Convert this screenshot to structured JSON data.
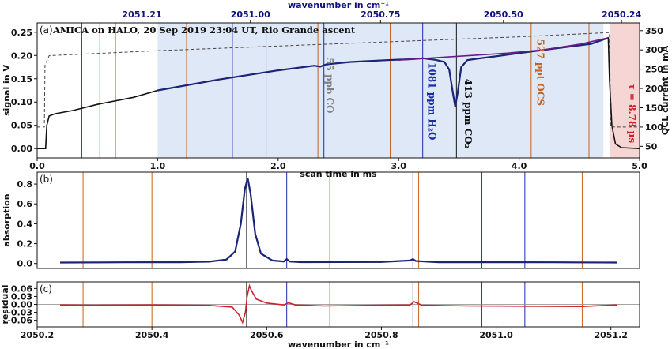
{
  "chart_data": [
    {
      "id": "a",
      "type": "line",
      "panel_label": "(a)",
      "title": "AMICA on HALO, 20 Sep 2019 23:04 UT, Rio Grande ascent",
      "xlabel": "scan time in ms",
      "ylabel": "signal in V",
      "y2label": "QCL current in mA",
      "top_axis_label": "wavenumber in cm⁻¹",
      "xlim": [
        0,
        5
      ],
      "ylim": [
        -0.02,
        0.27
      ],
      "y2lim": [
        20,
        370
      ],
      "xticks": [
        0.0,
        1.0,
        2.0,
        3.0,
        4.0,
        5.0
      ],
      "yticks": [
        0.0,
        0.05,
        0.1,
        0.15,
        0.2,
        0.25
      ],
      "y2ticks": [
        50,
        100,
        150,
        200,
        250,
        300,
        350
      ],
      "top_ticks": [
        {
          "label": "2051.21",
          "x": 0.87
        },
        {
          "label": "2051.00",
          "x": 1.77
        },
        {
          "label": "2050.75",
          "x": 2.85
        },
        {
          "label": "2050.50",
          "x": 3.87
        },
        {
          "label": "2050.24",
          "x": 4.85
        }
      ],
      "regions": [
        {
          "x0": 1.0,
          "x1": 4.7,
          "color": "#dfe8f6"
        },
        {
          "x0": 4.75,
          "x1": 5.0,
          "color": "#f6d5d5"
        }
      ],
      "lines": [
        {
          "x": 0.37,
          "color": "#1a2bb0"
        },
        {
          "x": 0.52,
          "color": "#c8621a"
        },
        {
          "x": 0.65,
          "color": "#c8621a"
        },
        {
          "x": 1.24,
          "color": "#c8621a"
        },
        {
          "x": 1.62,
          "color": "#1a2bb0"
        },
        {
          "x": 1.9,
          "color": "#1a2bb0"
        },
        {
          "x": 2.33,
          "color": "#c8621a"
        },
        {
          "x": 2.38,
          "color": "#1a2bb0"
        },
        {
          "x": 2.93,
          "color": "#c8621a"
        },
        {
          "x": 3.2,
          "color": "#1a2bb0"
        },
        {
          "x": 3.48,
          "color": "#1a1a1a"
        },
        {
          "x": 4.1,
          "color": "#c8621a"
        },
        {
          "x": 4.58,
          "color": "#c8621a"
        }
      ],
      "series": [
        {
          "role": "signal",
          "color": "#111111",
          "x": [
            0.0,
            0.07,
            0.08,
            0.1,
            0.15,
            0.3,
            0.5,
            0.8,
            1.0,
            1.5,
            2.0,
            2.3,
            2.35,
            2.4,
            2.6,
            2.9,
            3.1,
            3.2,
            3.3,
            3.38,
            3.42,
            3.45,
            3.47,
            3.49,
            3.52,
            3.57,
            3.65,
            3.8,
            4.0,
            4.3,
            4.6,
            4.74,
            4.75,
            4.77,
            4.8,
            4.85,
            5.0
          ],
          "y": [
            0.0,
            0.0,
            0.05,
            0.07,
            0.075,
            0.082,
            0.095,
            0.11,
            0.125,
            0.148,
            0.168,
            0.178,
            0.176,
            0.181,
            0.186,
            0.19,
            0.192,
            0.194,
            0.191,
            0.186,
            0.17,
            0.12,
            0.09,
            0.12,
            0.175,
            0.19,
            0.193,
            0.198,
            0.205,
            0.215,
            0.225,
            0.238,
            0.15,
            0.05,
            0.01,
            0.002,
            0.0
          ]
        },
        {
          "role": "fit",
          "color": "#1c2478",
          "x": [
            1.0,
            1.5,
            2.0,
            2.3,
            2.35,
            2.4,
            2.6,
            2.9,
            3.1,
            3.2,
            3.3,
            3.38,
            3.42,
            3.45,
            3.47,
            3.49,
            3.52,
            3.57,
            3.65,
            3.8,
            4.0,
            4.3,
            4.6,
            4.74
          ],
          "y": [
            0.125,
            0.148,
            0.168,
            0.178,
            0.176,
            0.181,
            0.186,
            0.19,
            0.192,
            0.194,
            0.191,
            0.186,
            0.17,
            0.12,
            0.09,
            0.12,
            0.175,
            0.19,
            0.193,
            0.198,
            0.205,
            0.215,
            0.225,
            0.238
          ]
        },
        {
          "role": "baseline",
          "color": "#6a1b8a",
          "x": [
            3.0,
            3.3,
            3.6,
            3.9,
            4.2,
            4.5,
            4.74
          ],
          "y": [
            0.19,
            0.195,
            0.2,
            0.205,
            0.212,
            0.224,
            0.238
          ]
        },
        {
          "role": "qcl_current",
          "axis": "y2",
          "color": "#444444",
          "dash": true,
          "x": [
            0.0,
            0.06,
            0.065,
            0.1,
            1.0,
            2.0,
            3.0,
            4.0,
            4.75,
            4.76,
            5.0
          ],
          "y": [
            100,
            100,
            260,
            285,
            298,
            310,
            322,
            334,
            345,
            100,
            100
          ]
        }
      ],
      "annotations": [
        {
          "text": "55 ppb CO",
          "x": 2.4,
          "y": 0.195,
          "color": "#808080"
        },
        {
          "text": "1081 ppm H₂O",
          "x": 3.25,
          "y": 0.185,
          "color": "#1a2bb0"
        },
        {
          "text": "413 ppm CO₂",
          "x": 3.55,
          "y": 0.15,
          "color": "#111111"
        },
        {
          "text": "527 ppt OCS",
          "x": 4.15,
          "y": 0.235,
          "color": "#c8621a"
        },
        {
          "text": "τ = 8.78 µs",
          "x": 4.91,
          "y": 0.14,
          "color": "#d0202a"
        }
      ]
    },
    {
      "id": "b",
      "type": "line",
      "panel_label": "(b)",
      "ylabel": "absorption",
      "xlim": [
        2050.2,
        2051.25
      ],
      "ylim": [
        -0.05,
        0.92
      ],
      "yticks": [
        0.0,
        0.2,
        0.4,
        0.6,
        0.8
      ],
      "lines": [
        {
          "x": 2050.28,
          "color": "#c8621a"
        },
        {
          "x": 2050.4,
          "color": "#c8621a"
        },
        {
          "x": 2050.565,
          "color": "#1a1a1a"
        },
        {
          "x": 2050.635,
          "color": "#1a2bb0"
        },
        {
          "x": 2050.71,
          "color": "#c8621a"
        },
        {
          "x": 2050.855,
          "color": "#1a2bb0"
        },
        {
          "x": 2050.865,
          "color": "#c8621a"
        },
        {
          "x": 2050.975,
          "color": "#1a2bb0"
        },
        {
          "x": 2051.05,
          "color": "#1a2bb0"
        },
        {
          "x": 2051.15,
          "color": "#c8621a"
        }
      ],
      "series": [
        {
          "role": "measured",
          "color": "#111111",
          "x": [
            2050.24,
            2050.35,
            2050.45,
            2050.5,
            2050.53,
            2050.545,
            2050.555,
            2050.562,
            2050.567,
            2050.572,
            2050.58,
            2050.59,
            2050.61,
            2050.63,
            2050.635,
            2050.64,
            2050.66,
            2050.8,
            2050.85,
            2050.855,
            2050.86,
            2050.9,
            2051.0,
            2051.1,
            2051.21
          ],
          "y": [
            0.01,
            0.012,
            0.013,
            0.018,
            0.04,
            0.12,
            0.4,
            0.75,
            0.86,
            0.7,
            0.3,
            0.1,
            0.03,
            0.02,
            0.045,
            0.02,
            0.014,
            0.015,
            0.03,
            0.045,
            0.025,
            0.013,
            0.013,
            0.012,
            0.01
          ]
        },
        {
          "role": "fit",
          "color": "#1c2478",
          "x": [
            2050.24,
            2050.35,
            2050.45,
            2050.5,
            2050.53,
            2050.545,
            2050.555,
            2050.562,
            2050.567,
            2050.572,
            2050.58,
            2050.59,
            2050.61,
            2050.63,
            2050.635,
            2050.64,
            2050.66,
            2050.8,
            2050.85,
            2050.855,
            2050.86,
            2050.9,
            2051.0,
            2051.1,
            2051.21
          ],
          "y": [
            0.01,
            0.012,
            0.013,
            0.018,
            0.04,
            0.12,
            0.4,
            0.75,
            0.86,
            0.7,
            0.3,
            0.1,
            0.03,
            0.02,
            0.045,
            0.02,
            0.014,
            0.015,
            0.03,
            0.045,
            0.025,
            0.013,
            0.013,
            0.012,
            0.01
          ]
        }
      ]
    },
    {
      "id": "c",
      "type": "line",
      "panel_label": "(c)",
      "xlabel": "wavenumber in cm⁻¹",
      "ylabel": "residual",
      "xlim": [
        2050.2,
        2051.25
      ],
      "ylim": [
        -0.085,
        0.085
      ],
      "xticks": [
        2050.2,
        2050.4,
        2050.6,
        2050.8,
        2051.0,
        2051.2
      ],
      "yticks": [
        0.06,
        0.03,
        0.0,
        -0.03,
        -0.06
      ],
      "lines": [
        {
          "x": 2050.28,
          "color": "#c8621a"
        },
        {
          "x": 2050.4,
          "color": "#c8621a"
        },
        {
          "x": 2050.565,
          "color": "#1a1a1a"
        },
        {
          "x": 2050.635,
          "color": "#1a2bb0"
        },
        {
          "x": 2050.71,
          "color": "#c8621a"
        },
        {
          "x": 2050.855,
          "color": "#1a2bb0"
        },
        {
          "x": 2050.865,
          "color": "#c8621a"
        },
        {
          "x": 2050.975,
          "color": "#1a2bb0"
        },
        {
          "x": 2051.05,
          "color": "#1a2bb0"
        },
        {
          "x": 2051.15,
          "color": "#c8621a"
        }
      ],
      "series": [
        {
          "role": "residual",
          "color": "#d0202a",
          "x": [
            2050.24,
            2050.3,
            2050.4,
            2050.5,
            2050.54,
            2050.552,
            2050.558,
            2050.563,
            2050.566,
            2050.57,
            2050.574,
            2050.582,
            2050.6,
            2050.63,
            2050.638,
            2050.65,
            2050.7,
            2050.8,
            2050.85,
            2050.857,
            2050.87,
            2050.95,
            2051.05,
            2051.15,
            2051.21
          ],
          "y": [
            -0.002,
            -0.003,
            -0.002,
            -0.004,
            -0.01,
            -0.04,
            -0.068,
            -0.03,
            0.03,
            0.07,
            0.05,
            0.02,
            0.005,
            -0.002,
            0.006,
            -0.002,
            -0.006,
            -0.003,
            -0.002,
            0.01,
            -0.003,
            -0.006,
            -0.007,
            -0.008,
            -0.002
          ]
        }
      ],
      "zero_line": 0.0
    }
  ]
}
